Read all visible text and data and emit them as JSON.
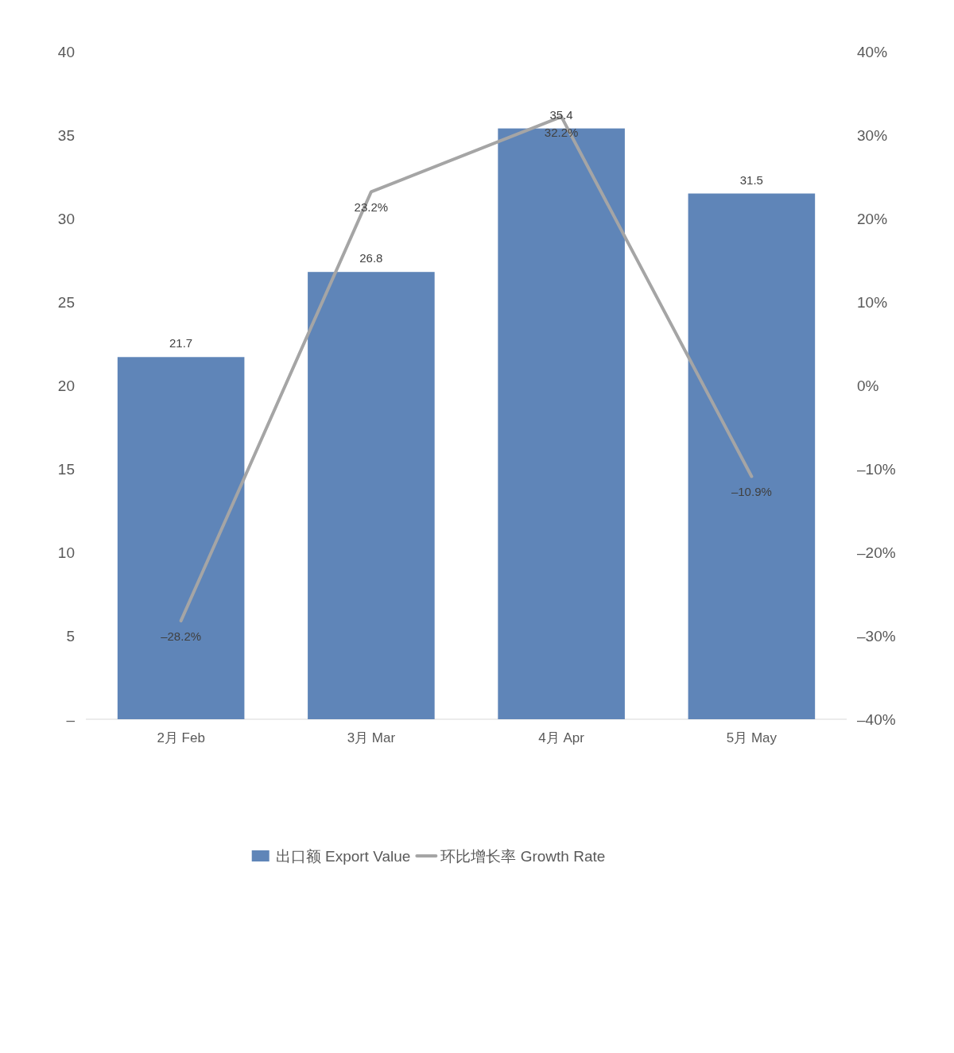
{
  "chart_data": {
    "type": "bar",
    "categories": [
      "2月 Feb",
      "3月 Mar",
      "4月 Apr",
      "5月 May"
    ],
    "series": [
      {
        "name": "出口额 Export Value",
        "color": "#5f85b8",
        "values": [
          21.7,
          26.8,
          35.4,
          31.5
        ],
        "value_labels": [
          "21.7",
          "26.8",
          "35.4",
          "31.5"
        ]
      },
      {
        "name": "环比增长率 Growth Rate",
        "type": "line",
        "axis": "y2",
        "color": "#a5a5a5",
        "values": [
          -28.2,
          23.2,
          32.2,
          -10.9
        ],
        "value_labels": [
          "–28.2%",
          "23.2%",
          "32.2%",
          "–10.9%"
        ]
      }
    ],
    "ylim": [
      0,
      40
    ],
    "yticks": [
      {
        "value": 0,
        "label": "–"
      },
      5,
      10,
      15,
      20,
      25,
      30,
      35,
      40
    ],
    "y2lim": [
      -40,
      40
    ],
    "y2ticks": [
      {
        "value": -40,
        "label": "–40%"
      },
      {
        "value": -30,
        "label": "–30%"
      },
      {
        "value": -20,
        "label": "–20%"
      },
      {
        "value": -10,
        "label": "–10%"
      },
      {
        "value": 0,
        "label": "0%"
      },
      {
        "value": 10,
        "label": "10%"
      },
      {
        "value": 20,
        "label": "20%"
      },
      {
        "value": 30,
        "label": "30%"
      },
      {
        "value": 40,
        "label": "40%"
      }
    ],
    "grid": false,
    "legend": "bottom"
  }
}
